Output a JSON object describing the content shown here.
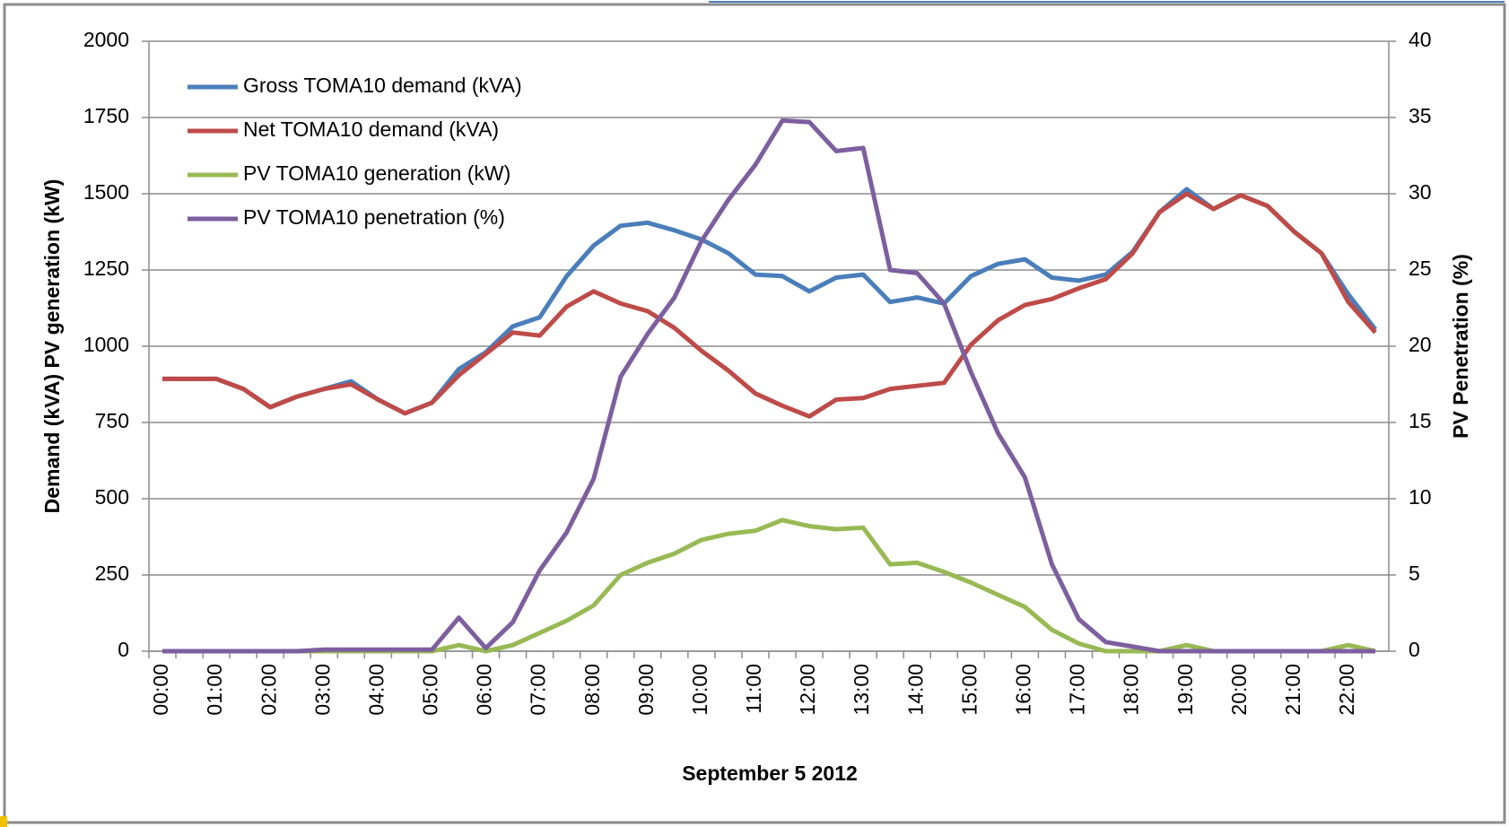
{
  "chart_data": {
    "type": "line",
    "xlabel": "September 5 2012",
    "ylabel": "Demand (kVA) PV generation (kW)",
    "y2label": "PV Penetration (%)",
    "categories": [
      "00:00",
      null,
      "01:00",
      null,
      "02:00",
      null,
      "03:00",
      null,
      "04:00",
      null,
      "05:00",
      null,
      "06:00",
      null,
      "07:00",
      null,
      "08:00",
      null,
      "09:00",
      null,
      "10:00",
      null,
      "11:00",
      null,
      "12:00",
      null,
      "13:00",
      null,
      "14:00",
      null,
      "15:00",
      null,
      "16:00",
      null,
      "17:00",
      null,
      "18:00",
      null,
      "19:00",
      null,
      "20:00",
      null,
      "21:00",
      null,
      "22:00",
      null
    ],
    "ylim": [
      0,
      2000
    ],
    "yticks": [
      0,
      250,
      500,
      750,
      1000,
      1250,
      1500,
      1750,
      2000
    ],
    "y2lim": [
      0,
      40
    ],
    "y2ticks": [
      0,
      5,
      10,
      15,
      20,
      25,
      30,
      35,
      40
    ],
    "grid": true,
    "legend": "upper left",
    "series": [
      {
        "name": "Gross TOMA10 demand (kVA)",
        "color": "#4a7ebb",
        "values": [
          893,
          893,
          893,
          860,
          800,
          835,
          860,
          885,
          825,
          780,
          815,
          925,
          980,
          1065,
          1095,
          1230,
          1330,
          1395,
          1405,
          1380,
          1350,
          1305,
          1235,
          1230,
          1180,
          1225,
          1235,
          1145,
          1160,
          1140,
          1230,
          1270,
          1285,
          1225,
          1215,
          1235,
          1310,
          1440,
          1515,
          1450,
          1495,
          1460,
          1375,
          1305,
          1170,
          1055
        ]
      },
      {
        "name": "Net TOMA10 demand (kVA)",
        "color": "#be4b48",
        "values": [
          893,
          893,
          893,
          860,
          800,
          835,
          860,
          875,
          825,
          780,
          815,
          905,
          975,
          1045,
          1035,
          1130,
          1180,
          1140,
          1115,
          1060,
          985,
          920,
          845,
          805,
          770,
          825,
          830,
          860,
          870,
          880,
          1005,
          1085,
          1135,
          1155,
          1190,
          1220,
          1305,
          1440,
          1500,
          1450,
          1495,
          1460,
          1375,
          1305,
          1145,
          1045
        ]
      },
      {
        "name": "PV TOMA10 generation (kW)",
        "color": "#98b954",
        "values": [
          0,
          0,
          0,
          0,
          0,
          0,
          0,
          0,
          0,
          0,
          0,
          20,
          0,
          20,
          60,
          100,
          150,
          250,
          290,
          320,
          365,
          385,
          395,
          430,
          410,
          400,
          405,
          285,
          290,
          260,
          225,
          185,
          145,
          70,
          25,
          0,
          0,
          0,
          20,
          0,
          0,
          0,
          0,
          0,
          20,
          0
        ]
      },
      {
        "name": "PV TOMA10 penetration (%)",
        "color": "#7d5fa0",
        "axis": "y2",
        "values": [
          0,
          0,
          0,
          0,
          0,
          0,
          0.1,
          0.1,
          0.1,
          0.1,
          0.1,
          2.2,
          0.2,
          1.9,
          5.3,
          7.8,
          11.3,
          18.0,
          20.8,
          23.2,
          26.9,
          29.6,
          31.9,
          34.8,
          34.7,
          32.8,
          33.0,
          25.0,
          24.8,
          22.8,
          18.3,
          14.3,
          11.4,
          5.7,
          2.1,
          0.6,
          0.3,
          0,
          0,
          0,
          0,
          0,
          0,
          0,
          0,
          0
        ]
      }
    ]
  }
}
